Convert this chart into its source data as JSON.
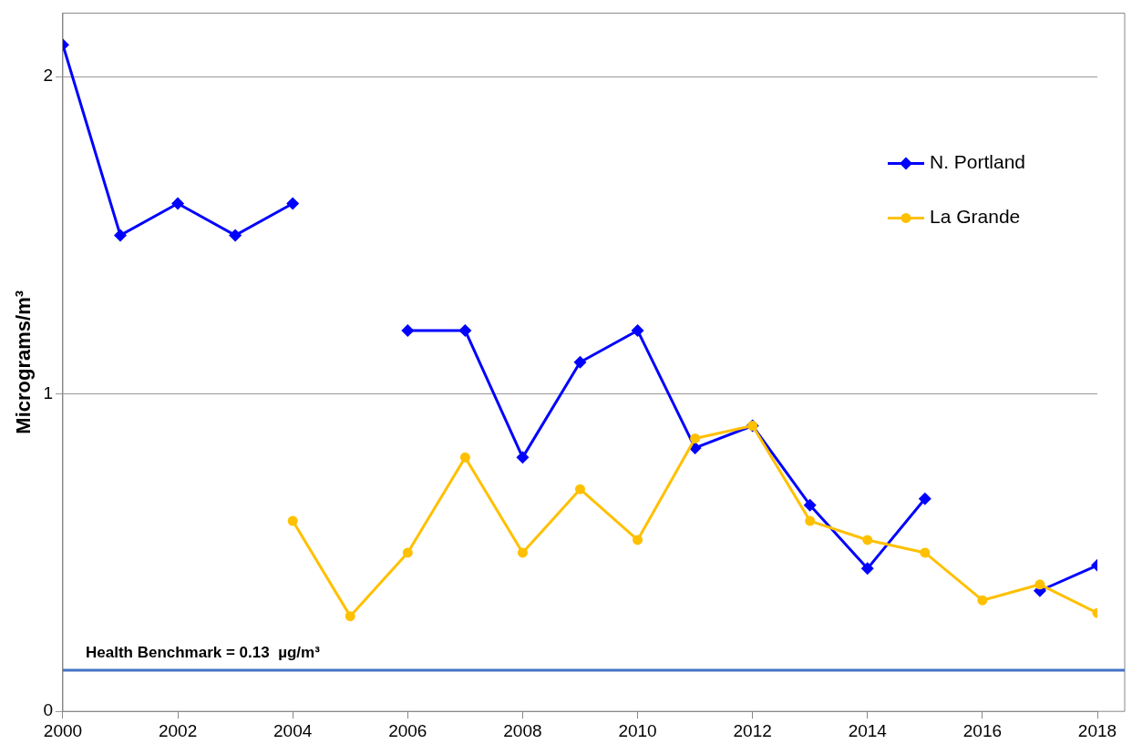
{
  "chart_data": {
    "type": "line",
    "ylabel": "Micrograms/m³",
    "x": [
      2000,
      2001,
      2002,
      2003,
      2004,
      2005,
      2006,
      2007,
      2008,
      2009,
      2010,
      2011,
      2012,
      2013,
      2014,
      2015,
      2016,
      2017,
      2018
    ],
    "xlim": [
      2000,
      2018
    ],
    "xticks": [
      2000,
      2002,
      2004,
      2006,
      2008,
      2010,
      2012,
      2014,
      2016,
      2018
    ],
    "ylim": [
      0,
      2.2
    ],
    "yticks": [
      0,
      1,
      2
    ],
    "grid": "y",
    "legend": "top right",
    "line_style": "solid",
    "series": [
      {
        "name": "N. Portland",
        "color": "#0000ff",
        "marker": "diamond",
        "values": [
          2.1,
          1.5,
          1.6,
          1.5,
          1.6,
          null,
          1.2,
          1.2,
          0.8,
          1.1,
          1.2,
          0.83,
          0.9,
          0.65,
          0.45,
          0.67,
          null,
          0.38,
          0.46
        ]
      },
      {
        "name": "La Grande",
        "color": "#ffc000",
        "marker": "circle",
        "values": [
          null,
          null,
          null,
          null,
          0.6,
          0.3,
          0.5,
          0.8,
          0.5,
          0.7,
          0.54,
          0.86,
          0.9,
          0.6,
          0.54,
          0.5,
          0.35,
          0.4,
          0.31
        ]
      }
    ],
    "ref_lines": [
      {
        "axis": "y",
        "value": 0.13,
        "label": "Health Benchmark = 0.13  µg/m³",
        "color": "#4472c4"
      }
    ]
  }
}
